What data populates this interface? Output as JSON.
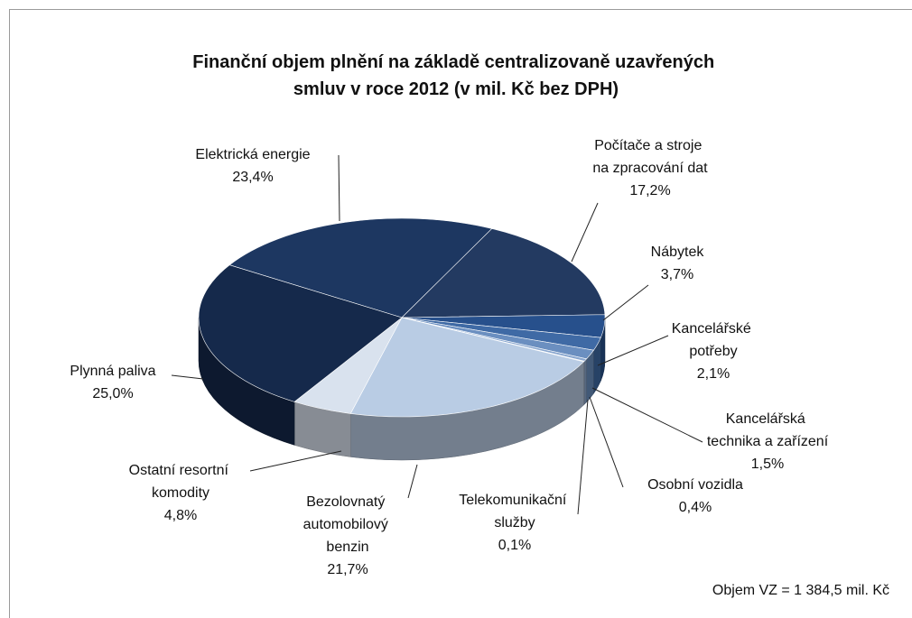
{
  "chart_data": {
    "type": "pie",
    "title": "Finanční objem plnění na základě centralizovaně uzavřených\nsmluv v roce 2012 (v mil. Kč bez DPH)",
    "categories": [
      "Elektrická energie",
      "Počítače a stroje\nna zpracování dat",
      "Nábytek",
      "Kancelářské\npotřeby",
      "Kancelářská\ntechnika a zařízení",
      "Osobní vozidla",
      "Telekomunikační\nslužby",
      "Bezolovnatý\nautomobilový\nbenzin",
      "Ostatní resortní\nkomodity",
      "Plynná paliva"
    ],
    "values": [
      23.4,
      17.2,
      3.7,
      2.1,
      1.5,
      0.4,
      0.1,
      21.7,
      4.8,
      25.0
    ],
    "value_labels": [
      "23,4%",
      "17,2%",
      "3,7%",
      "2,1%",
      "1,5%",
      "0,4%",
      "0,1%",
      "21,7%",
      "4,8%",
      "25,0%"
    ],
    "colors": [
      "#1d3761",
      "#233a61",
      "#27508c",
      "#3f6aa5",
      "#6b8fc0",
      "#8aa7cf",
      "#a9bfdd",
      "#b9cce4",
      "#d9e2ee",
      "#15294b"
    ],
    "annotation": "Objem VZ = 1 384,5 mil. Kč"
  }
}
